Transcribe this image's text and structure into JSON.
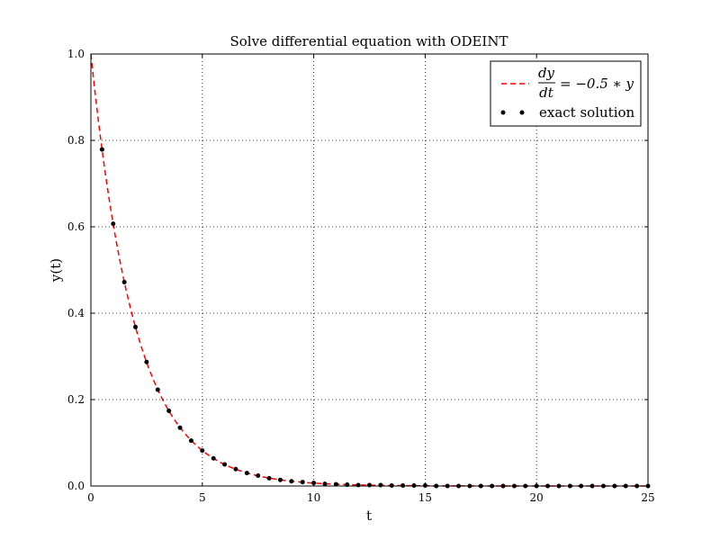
{
  "chart_data": {
    "type": "line",
    "title": "Solve differential equation with ODEINT",
    "xlabel": "t",
    "ylabel": "y(t)",
    "xlim": [
      0,
      25
    ],
    "ylim": [
      0,
      1.0
    ],
    "xticks": [
      0,
      5,
      10,
      15,
      20,
      25
    ],
    "yticks": [
      0.0,
      0.2,
      0.4,
      0.6,
      0.8,
      1.0
    ],
    "xtick_labels": [
      "0",
      "5",
      "10",
      "15",
      "20",
      "25"
    ],
    "ytick_labels": [
      "0.0",
      "0.2",
      "0.4",
      "0.6",
      "0.8",
      "1.0"
    ],
    "grid": true,
    "legend_position": "top-right",
    "series": [
      {
        "name": "dy/dt = −0.5 ∗ y",
        "style": "dashed-line",
        "color": "#ff0000",
        "function": "exp(-0.5*t)",
        "x_range": [
          0,
          25
        ]
      },
      {
        "name": "exact solution",
        "style": "dots",
        "color": "#000000",
        "x": [
          0.5,
          1.0,
          1.5,
          2.0,
          2.5,
          3.0,
          3.5,
          4.0,
          4.5,
          5.0,
          5.5,
          6.0,
          6.5,
          7.0,
          7.5,
          8.0,
          8.5,
          9.0,
          9.5,
          10.0,
          10.5,
          11.0,
          11.5,
          12.0,
          12.5,
          13.0,
          13.5,
          14.0,
          14.5,
          15.0,
          15.5,
          16.0,
          16.5,
          17.0,
          17.5,
          18.0,
          18.5,
          19.0,
          19.5,
          20.0,
          20.5,
          21.0,
          21.5,
          22.0,
          22.5,
          23.0,
          23.5,
          24.0,
          24.5,
          25.0
        ],
        "y": [
          0.779,
          0.607,
          0.472,
          0.368,
          0.287,
          0.223,
          0.174,
          0.135,
          0.105,
          0.082,
          0.064,
          0.05,
          0.039,
          0.03,
          0.024,
          0.018,
          0.014,
          0.011,
          0.009,
          0.007,
          0.005,
          0.004,
          0.003,
          0.002,
          0.002,
          0.002,
          0.001,
          0.001,
          0.001,
          0.001,
          0.0,
          0.0,
          0.0,
          0.0,
          0.0,
          0.0,
          0.0,
          0.0,
          0.0,
          0.0,
          0.0,
          0.0,
          0.0,
          0.0,
          0.0,
          0.0,
          0.0,
          0.0,
          0.0,
          0.0
        ]
      }
    ]
  },
  "legend": {
    "entry1_numerator": "dy",
    "entry1_denominator": "dt",
    "entry1_rhs": "= −0.5 ∗ y",
    "entry2_label": "exact solution"
  }
}
